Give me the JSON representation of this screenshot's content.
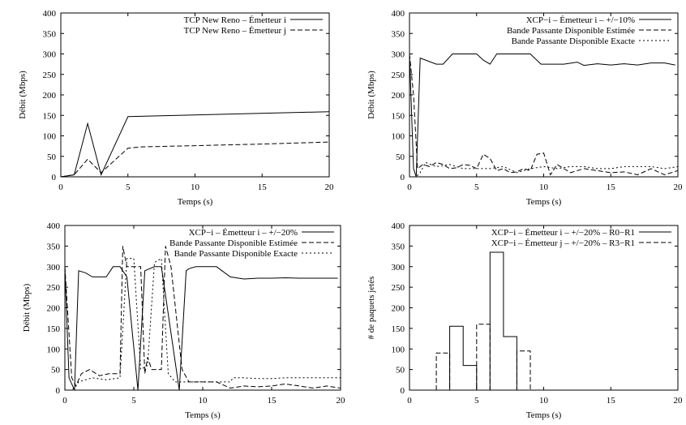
{
  "chart_data": [
    {
      "type": "line",
      "xlabel": "Temps (s)",
      "ylabel": "Débit (Mbps)",
      "xlim": [
        0,
        20
      ],
      "ylim": [
        0,
        400
      ],
      "xticks": [
        0,
        5,
        10,
        15,
        20
      ],
      "yticks": [
        0,
        50,
        100,
        150,
        200,
        250,
        300,
        350,
        400
      ],
      "grid": false,
      "legend": "top-right",
      "series": [
        {
          "name": "TCP New Reno – Émetteur i",
          "style": "solid",
          "x": [
            0,
            1,
            2,
            3,
            5,
            20
          ],
          "y": [
            0,
            5,
            130,
            5,
            147,
            159
          ]
        },
        {
          "name": "TCP New Reno – Émetteur j",
          "style": "dashed",
          "x": [
            0,
            1,
            2,
            3,
            5,
            6,
            10,
            15,
            20
          ],
          "y": [
            0,
            5,
            43,
            10,
            70,
            73,
            76,
            80,
            85
          ]
        }
      ]
    },
    {
      "type": "line",
      "xlabel": "Temps (s)",
      "ylabel": "Débit (Mbps)",
      "xlim": [
        0,
        20
      ],
      "ylim": [
        0,
        400
      ],
      "xticks": [
        0,
        5,
        10,
        15,
        20
      ],
      "yticks": [
        0,
        50,
        100,
        150,
        200,
        250,
        300,
        350,
        400
      ],
      "grid": false,
      "legend": "top-right",
      "series": [
        {
          "name": "XCP−i – Émetteur i – +/−10%",
          "style": "solid",
          "x": [
            0,
            0.3,
            0.5,
            0.8,
            1.2,
            2,
            2.5,
            3.2,
            4,
            5,
            5.5,
            6,
            6.5,
            7,
            8,
            9,
            9.8,
            10.5,
            11.5,
            12.5,
            13,
            14,
            15,
            16,
            17,
            18,
            19,
            19.8
          ],
          "y": [
            300,
            20,
            0,
            290,
            285,
            275,
            275,
            300,
            300,
            300,
            285,
            275,
            300,
            300,
            300,
            300,
            275,
            275,
            275,
            280,
            272,
            276,
            273,
            276,
            273,
            278,
            278,
            273
          ]
        },
        {
          "name": "Bande Passante Disponible Estimée",
          "style": "dashed",
          "x": [
            0,
            0.3,
            0.6,
            1,
            1.5,
            2,
            2.5,
            3,
            3.5,
            4,
            4.5,
            5,
            5.5,
            6,
            6.5,
            7,
            7.5,
            8,
            8.5,
            9,
            9.5,
            10,
            10.5,
            11,
            12,
            13,
            14,
            15,
            16,
            17,
            18,
            19,
            20
          ],
          "y": [
            300,
            200,
            20,
            30,
            25,
            35,
            30,
            20,
            22,
            30,
            28,
            20,
            55,
            45,
            15,
            20,
            10,
            12,
            20,
            15,
            55,
            58,
            5,
            30,
            10,
            20,
            15,
            10,
            12,
            5,
            20,
            5,
            15
          ]
        },
        {
          "name": "Bande Passante Disponible Exacte",
          "style": "dotted",
          "x": [
            0,
            0.5,
            0.8,
            1.2,
            2,
            3,
            4,
            5,
            6,
            7,
            8,
            9,
            10,
            11,
            12,
            13,
            14,
            15,
            16,
            17,
            18,
            19,
            20
          ],
          "y": [
            0,
            0,
            10,
            35,
            25,
            30,
            20,
            20,
            20,
            25,
            10,
            20,
            25,
            20,
            25,
            25,
            20,
            20,
            25,
            25,
            25,
            20,
            25
          ]
        }
      ]
    },
    {
      "type": "line",
      "xlabel": "Temps (s)",
      "ylabel": "Débit (Mbps)",
      "xlim": [
        0,
        20
      ],
      "ylim": [
        0,
        400
      ],
      "xticks": [
        0,
        5,
        10,
        15,
        20
      ],
      "yticks": [
        0,
        50,
        100,
        150,
        200,
        250,
        300,
        350,
        400
      ],
      "grid": false,
      "legend": "top-right",
      "series": [
        {
          "name": "XCP−i – Émetteur i – +/−20%",
          "style": "solid",
          "x": [
            0,
            0.3,
            0.7,
            1,
            1.5,
            2,
            3,
            3.5,
            4,
            4.5,
            5.3,
            5.8,
            6.5,
            7,
            8.3,
            8.8,
            9,
            9.5,
            10,
            11,
            12,
            13,
            14,
            15,
            16,
            17,
            18,
            19,
            19.8
          ],
          "y": [
            300,
            30,
            0,
            290,
            285,
            275,
            275,
            300,
            300,
            275,
            0,
            290,
            300,
            300,
            0,
            290,
            295,
            300,
            300,
            300,
            275,
            270,
            272,
            272,
            273,
            272,
            272,
            272,
            272
          ]
        },
        {
          "name": "Bande Passante Disponible Estimée",
          "style": "dashed",
          "x": [
            0,
            0.5,
            0.8,
            1.2,
            1.8,
            2.5,
            3.2,
            4,
            4.2,
            4.5,
            5,
            5.5,
            5.8,
            6,
            6.3,
            6.5,
            7,
            7.3,
            7.7,
            8.5,
            9,
            10,
            11,
            12,
            13,
            14,
            15,
            16,
            17,
            18,
            19,
            20
          ],
          "y": [
            300,
            30,
            10,
            40,
            50,
            35,
            40,
            40,
            350,
            300,
            300,
            300,
            40,
            80,
            50,
            50,
            50,
            350,
            300,
            50,
            20,
            20,
            20,
            5,
            10,
            8,
            10,
            15,
            10,
            5,
            10,
            5
          ]
        },
        {
          "name": "Bande Passante Disponible Exacte",
          "style": "dotted",
          "x": [
            0,
            0.5,
            0.8,
            1,
            1.5,
            2,
            3,
            4,
            4.5,
            5,
            5.5,
            6,
            6.5,
            7,
            7.5,
            8,
            9,
            10,
            11,
            12,
            12.2,
            13,
            14,
            15,
            16,
            17,
            18,
            19,
            20
          ],
          "y": [
            0,
            0,
            10,
            20,
            25,
            30,
            25,
            30,
            320,
            320,
            50,
            60,
            310,
            320,
            40,
            20,
            20,
            20,
            20,
            20,
            30,
            30,
            28,
            28,
            30,
            30,
            30,
            30,
            30
          ]
        }
      ]
    },
    {
      "type": "line",
      "xlabel": "Temps (s)",
      "ylabel": "# de paquets jetés",
      "xlim": [
        0,
        20
      ],
      "ylim": [
        0,
        400
      ],
      "xticks": [
        0,
        5,
        10,
        15,
        20
      ],
      "yticks": [
        0,
        50,
        100,
        150,
        200,
        250,
        300,
        350,
        400
      ],
      "grid": false,
      "legend": "top-right",
      "series": [
        {
          "name": "XCP−i – Émetteur i – +/−20% – R0−R1",
          "style": "solid",
          "x": [
            3,
            3,
            4,
            4,
            5,
            5,
            6,
            6,
            7,
            7,
            8,
            8
          ],
          "y": [
            0,
            155,
            155,
            60,
            60,
            0,
            0,
            335,
            335,
            130,
            130,
            0
          ]
        },
        {
          "name": "XCP−i – Émetteur j – +/−20% – R3−R1",
          "style": "dashed",
          "x": [
            2,
            2,
            3,
            3,
            5,
            5,
            6,
            6,
            8,
            8,
            9,
            9
          ],
          "y": [
            0,
            90,
            90,
            0,
            0,
            160,
            160,
            0,
            0,
            95,
            95,
            0
          ]
        }
      ]
    }
  ]
}
